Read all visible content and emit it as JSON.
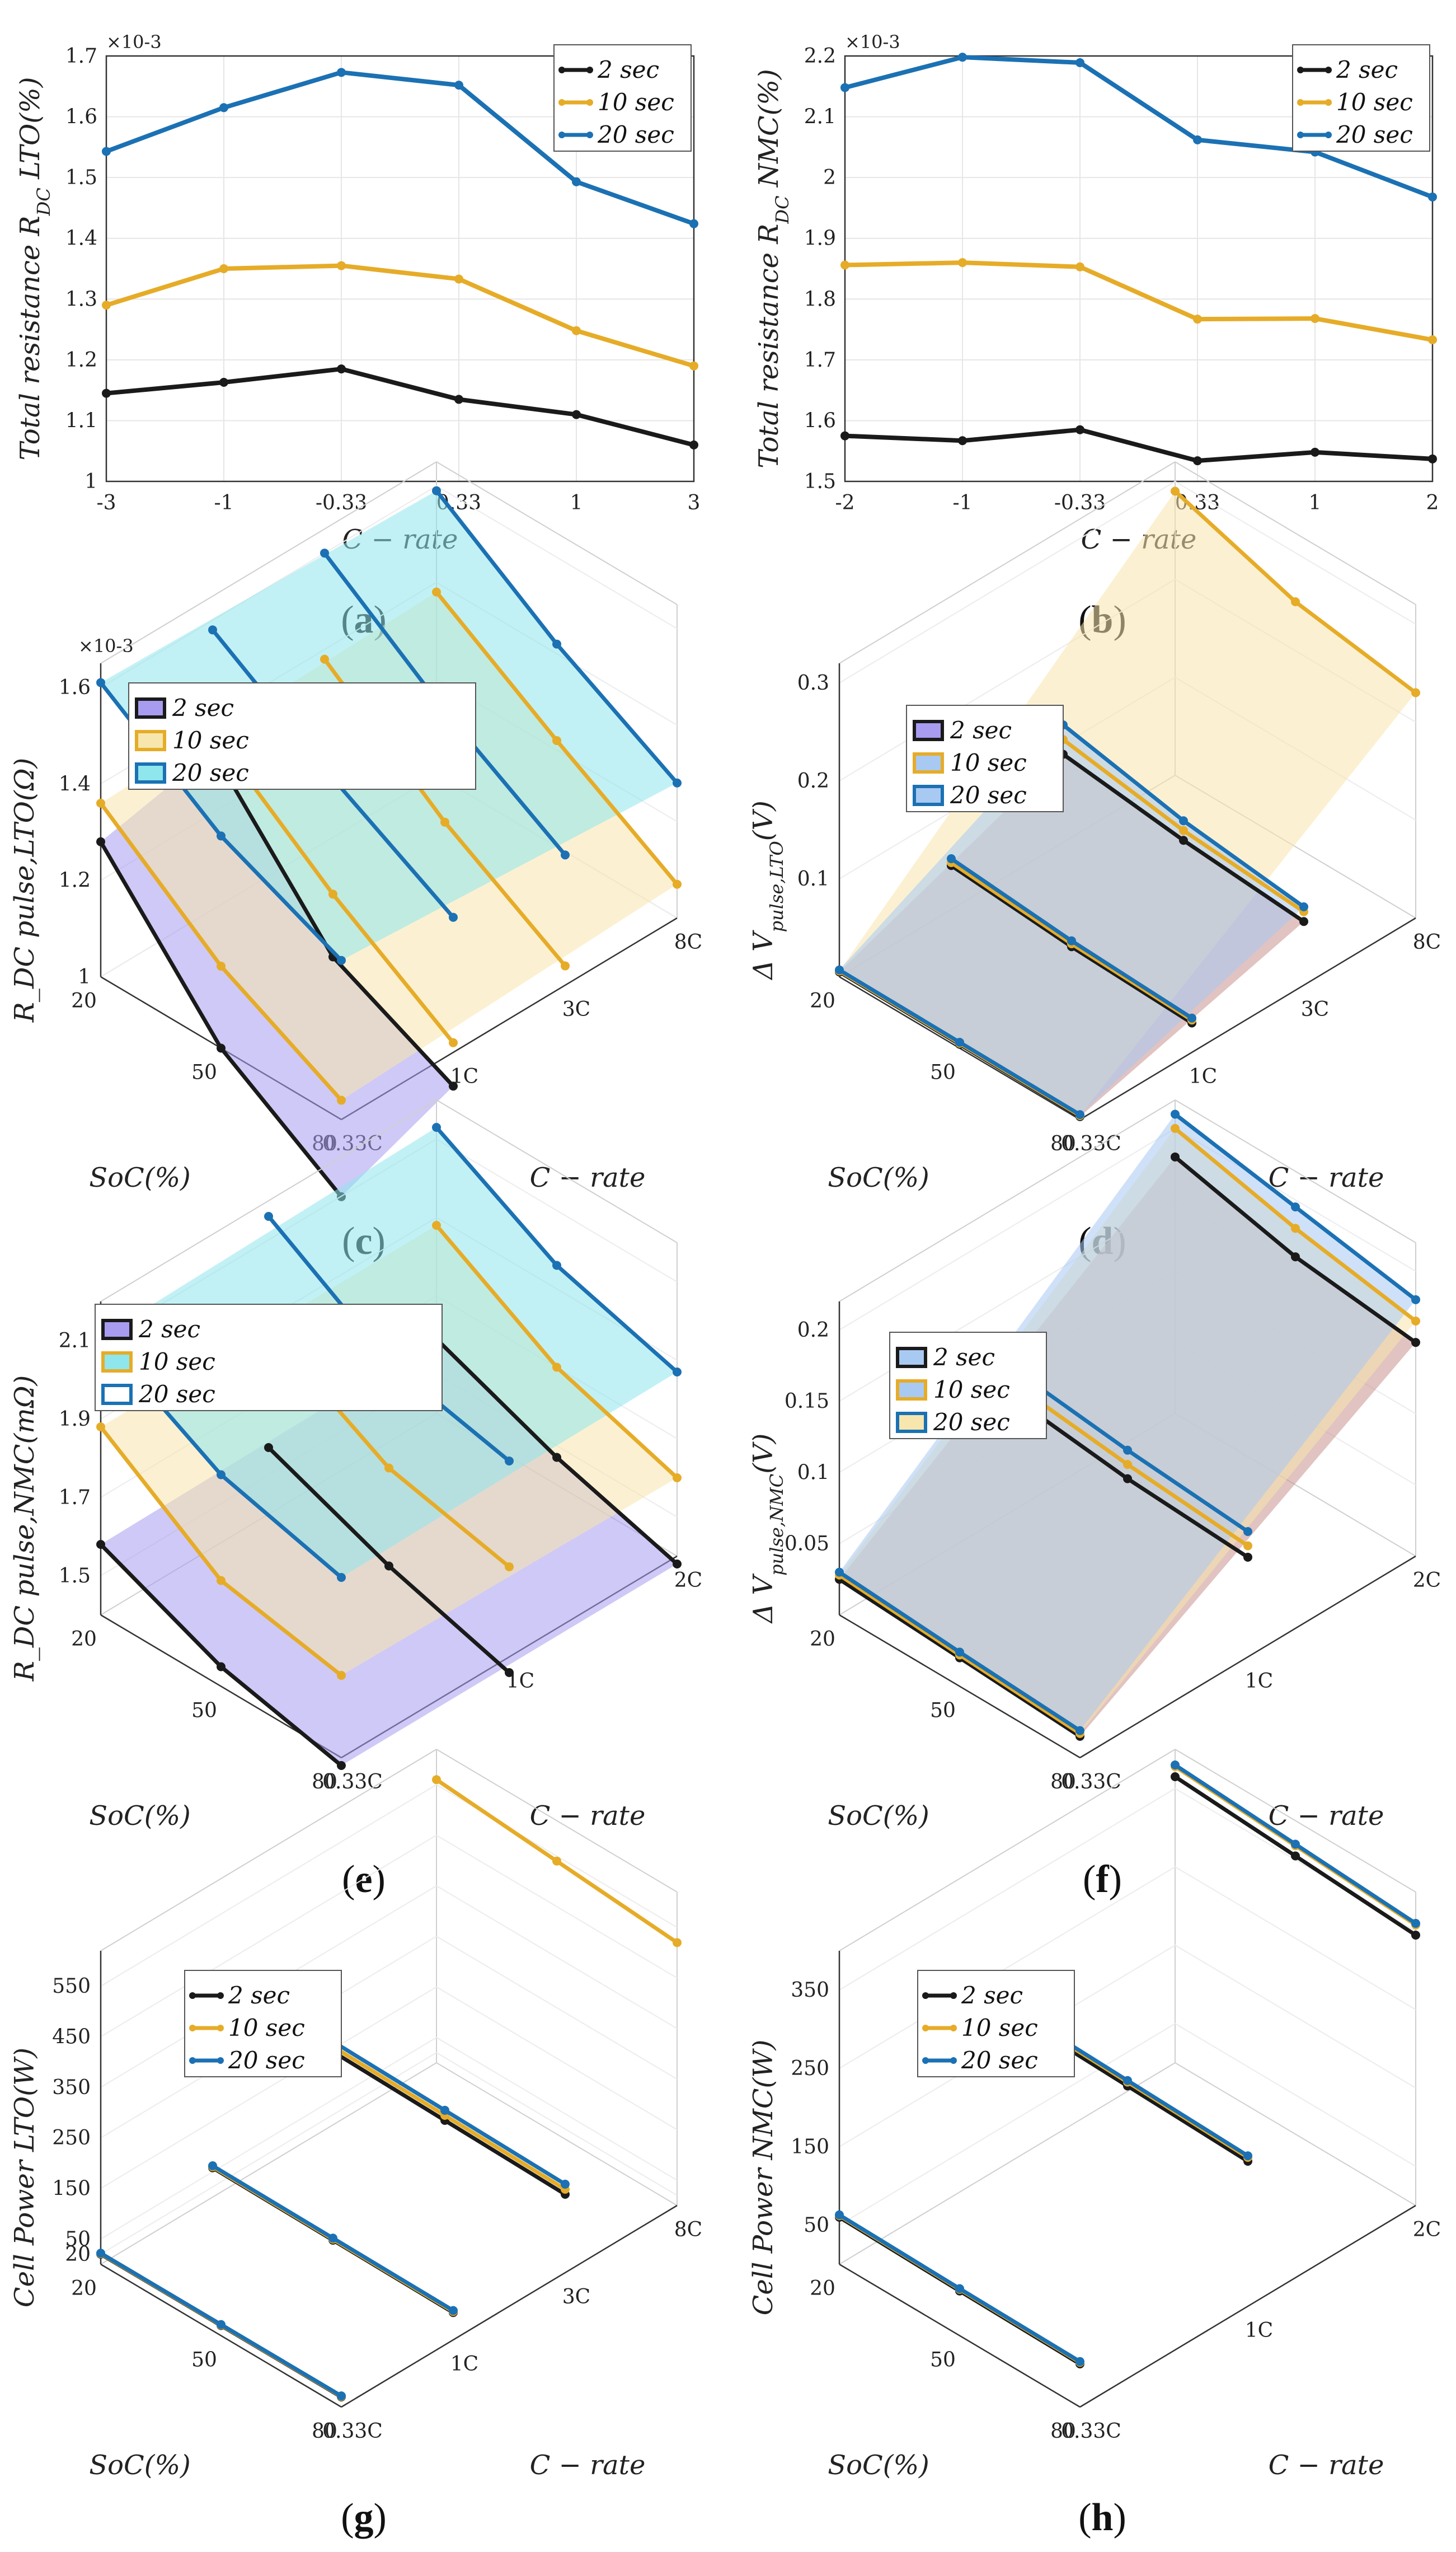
{
  "colors": {
    "s2": "#1a1a1a",
    "s10": "#e6ac28",
    "s20": "#1b71b3",
    "purple": "#a79cf0",
    "cyan": "#8fe6ec",
    "yellow": "#f7e6ad",
    "blue": "#a8c9f2",
    "brown": "#c8928e"
  },
  "charts": [
    {
      "id": "a",
      "caption": "(a)",
      "caption_letter": "a",
      "type": "line",
      "categories": [
        "-3",
        "-1",
        "-0.33",
        "0.33",
        "1",
        "3"
      ],
      "ylim": [
        1.0,
        1.7
      ],
      "yticks": [
        "1",
        "1.1",
        "1.2",
        "1.3",
        "1.4",
        "1.5",
        "1.6",
        "1.7"
      ],
      "multiplier": "×10-3",
      "xlabel": "C − rate",
      "ylabel": "Total resistance R_DC LTO(%)",
      "legend": [
        "2 sec",
        "10 sec",
        "20 sec"
      ],
      "series": [
        {
          "name": "2 sec",
          "values": [
            1.145,
            1.163,
            1.185,
            1.135,
            1.11,
            1.06
          ]
        },
        {
          "name": "10 sec",
          "values": [
            1.29,
            1.35,
            1.355,
            1.333,
            1.248,
            1.19
          ]
        },
        {
          "name": "20 sec",
          "values": [
            1.543,
            1.615,
            1.673,
            1.652,
            1.493,
            1.424
          ]
        }
      ]
    },
    {
      "id": "b",
      "caption": "(b)",
      "caption_letter": "b",
      "type": "line",
      "categories": [
        "-2",
        "-1",
        "-0.33",
        "0.33",
        "1",
        "2"
      ],
      "ylim": [
        1.5,
        2.2
      ],
      "yticks": [
        "1.5",
        "1.6",
        "1.7",
        "1.8",
        "1.9",
        "2",
        "2.1",
        "2.2"
      ],
      "multiplier": "×10-3",
      "xlabel": "C − rate",
      "ylabel": "Total resistance R_DC NMC(%)",
      "legend": [
        "2 sec",
        "10 sec",
        "20 sec"
      ],
      "series": [
        {
          "name": "2 sec",
          "values": [
            1.575,
            1.567,
            1.585,
            1.534,
            1.548,
            1.537
          ]
        },
        {
          "name": "10 sec",
          "values": [
            1.856,
            1.86,
            1.853,
            1.767,
            1.768,
            1.733
          ]
        },
        {
          "name": "20 sec",
          "values": [
            2.148,
            2.198,
            2.189,
            2.062,
            2.042,
            1.968
          ]
        }
      ]
    },
    {
      "id": "c",
      "caption": "(c)",
      "caption_letter": "c",
      "type": "surface3d",
      "zticks": [
        "1",
        "1.2",
        "1.4",
        "1.6"
      ],
      "zlim": [
        1.0,
        1.65
      ],
      "multiplier": "×10-3",
      "soc_ticks": [
        "20",
        "50",
        "80"
      ],
      "crate_ticks": [
        "0.33C",
        "1C",
        "3C",
        "8C"
      ],
      "xlabel": "SoC(%)",
      "ylabel": "C − rate",
      "zlabel": "R_DC pulse,LTO(Ω)",
      "legend": [
        "2 sec",
        "10 sec",
        "20 sec"
      ],
      "lines": [
        {
          "name": "2 sec",
          "c": 0,
          "values": [
            1.28,
            1.0,
            0.84
          ]
        },
        {
          "name": "2 sec",
          "c": 1,
          "values": [
            1.33,
            1.05,
            0.93
          ]
        },
        {
          "name": "10 sec",
          "c": 0,
          "values": [
            1.36,
            1.17,
            1.04
          ]
        },
        {
          "name": "10 sec",
          "c": 1,
          "values": [
            1.37,
            1.18,
            1.02
          ]
        },
        {
          "name": "10 sec",
          "c": 2,
          "values": [
            1.38,
            1.19,
            1.04
          ]
        },
        {
          "name": "10 sec",
          "c": 3,
          "values": [
            1.38,
            1.22,
            1.07
          ]
        },
        {
          "name": "20 sec",
          "c": 0,
          "values": [
            1.61,
            1.44,
            1.33
          ]
        },
        {
          "name": "20 sec",
          "c": 1,
          "values": [
            1.58,
            1.42,
            1.28
          ]
        },
        {
          "name": "20 sec",
          "c": 2,
          "values": [
            1.6,
            1.42,
            1.27
          ]
        },
        {
          "name": "20 sec",
          "c": 3,
          "values": [
            1.59,
            1.42,
            1.28
          ]
        }
      ]
    },
    {
      "id": "d",
      "caption": "(d)",
      "caption_letter": "d",
      "type": "surface3d",
      "zticks": [
        "0.1",
        "0.2",
        "0.3"
      ],
      "zlim": [
        0.0,
        0.32
      ],
      "multiplier": "",
      "soc_ticks": [
        "20",
        "50",
        "80"
      ],
      "crate_ticks": [
        "0.33C",
        "1C",
        "3C",
        "8C"
      ],
      "xlabel": "SoC(%)",
      "ylabel": "C − rate",
      "zlabel": "Δ V_pulse,LTO(V)",
      "legend": [
        "2 sec",
        "10 sec",
        "20 sec"
      ],
      "lines": [
        {
          "name": "2 sec",
          "c": 0,
          "values": [
            0.005,
            0.004,
            0.003
          ]
        },
        {
          "name": "2 sec",
          "c": 1,
          "values": [
            0.045,
            0.035,
            0.03
          ]
        },
        {
          "name": "2 sec",
          "c": 2,
          "values": [
            0.09,
            0.075,
            0.065
          ]
        },
        {
          "name": "10 sec",
          "c": 0,
          "values": [
            0.006,
            0.005,
            0.004
          ]
        },
        {
          "name": "10 sec",
          "c": 1,
          "values": [
            0.048,
            0.038,
            0.033
          ]
        },
        {
          "name": "10 sec",
          "c": 2,
          "values": [
            0.105,
            0.085,
            0.075
          ]
        },
        {
          "name": "10 sec",
          "c": 3,
          "values": [
            0.29,
            0.25,
            0.23
          ]
        },
        {
          "name": "20 sec",
          "c": 0,
          "values": [
            0.007,
            0.006,
            0.005
          ]
        },
        {
          "name": "20 sec",
          "c": 1,
          "values": [
            0.052,
            0.041,
            0.035
          ]
        },
        {
          "name": "20 sec",
          "c": 2,
          "values": [
            0.12,
            0.095,
            0.08
          ]
        }
      ]
    },
    {
      "id": "e",
      "caption": "(e)",
      "caption_letter": "e",
      "type": "surface3d",
      "zticks": [
        "1.5",
        "1.7",
        "1.9",
        "2.1"
      ],
      "zlim": [
        1.4,
        2.2
      ],
      "multiplier": "",
      "soc_ticks": [
        "20",
        "50",
        "80"
      ],
      "crate_ticks": [
        "0.33C",
        "1C",
        "2C"
      ],
      "xlabel": "SoC(%)",
      "ylabel": "C − rate",
      "zlabel": "R_DC pulse,NMC(mΩ)",
      "legend": [
        "2 sec",
        "10 sec",
        "20 sec"
      ],
      "lines": [
        {
          "name": "2 sec",
          "c": 0,
          "values": [
            1.58,
            1.45,
            1.38
          ]
        },
        {
          "name": "2 sec",
          "c": 1,
          "values": [
            1.57,
            1.45,
            1.36
          ]
        },
        {
          "name": "2 sec",
          "c": 2,
          "values": [
            1.59,
            1.47,
            1.38
          ]
        },
        {
          "name": "10 sec",
          "c": 0,
          "values": [
            1.88,
            1.67,
            1.61
          ]
        },
        {
          "name": "10 sec",
          "c": 1,
          "values": [
            1.87,
            1.7,
            1.63
          ]
        },
        {
          "name": "10 sec",
          "c": 2,
          "values": [
            1.88,
            1.7,
            1.6
          ]
        },
        {
          "name": "20 sec",
          "c": 0,
          "values": [
            2.11,
            1.94,
            1.86
          ]
        },
        {
          "name": "20 sec",
          "c": 1,
          "values": [
            2.16,
            1.97,
            1.9
          ]
        },
        {
          "name": "20 sec",
          "c": 2,
          "values": [
            2.13,
            1.96,
            1.87
          ]
        }
      ]
    },
    {
      "id": "f",
      "caption": "(f)",
      "caption_letter": "f",
      "type": "surface3d",
      "zticks": [
        "0.05",
        "0.1",
        "0.15",
        "0.2"
      ],
      "zlim": [
        0.0,
        0.22
      ],
      "multiplier": "",
      "soc_ticks": [
        "20",
        "50",
        "80"
      ],
      "crate_ticks": [
        "0.33C",
        "1C",
        "2C"
      ],
      "xlabel": "SoC(%)",
      "ylabel": "C − rate",
      "zlabel": "Δ V_pulse,NMC(V)",
      "legend": [
        "2 sec",
        "10 sec",
        "20 sec"
      ],
      "lines": [
        {
          "name": "2 sec",
          "c": 0,
          "values": [
            0.025,
            0.02,
            0.015
          ]
        },
        {
          "name": "2 sec",
          "c": 1,
          "values": [
            0.085,
            0.075,
            0.07
          ]
        },
        {
          "name": "2 sec",
          "c": 2,
          "values": [
            0.18,
            0.16,
            0.15
          ]
        },
        {
          "name": "10 sec",
          "c": 0,
          "values": [
            0.028,
            0.022,
            0.017
          ]
        },
        {
          "name": "10 sec",
          "c": 1,
          "values": [
            0.095,
            0.085,
            0.078
          ]
        },
        {
          "name": "10 sec",
          "c": 2,
          "values": [
            0.2,
            0.18,
            0.165
          ]
        },
        {
          "name": "20 sec",
          "c": 0,
          "values": [
            0.03,
            0.024,
            0.019
          ]
        },
        {
          "name": "20 sec",
          "c": 1,
          "values": [
            0.105,
            0.095,
            0.088
          ]
        },
        {
          "name": "20 sec",
          "c": 2,
          "values": [
            0.21,
            0.195,
            0.18
          ]
        }
      ]
    },
    {
      "id": "g",
      "caption": "(g)",
      "caption_letter": "g",
      "type": "lines3d",
      "zticks": [
        "20",
        "50",
        "150",
        "250",
        "350",
        "450",
        "550"
      ],
      "zlim": [
        0,
        620
      ],
      "multiplier": "",
      "soc_ticks": [
        "20",
        "50",
        "80"
      ],
      "crate_ticks": [
        "0.33C",
        "1C",
        "3C",
        "8C"
      ],
      "xlabel": "SoC(%)",
      "ylabel": "C − rate",
      "zlabel": "Cell Power LTO(W)",
      "legend": [
        "2 sec",
        "10 sec",
        "20 sec"
      ],
      "lines": [
        {
          "name": "2 sec",
          "c": 0,
          "values": [
            20,
            20,
            20
          ]
        },
        {
          "name": "2 sec",
          "c": 1,
          "values": [
            58,
            56,
            54
          ]
        },
        {
          "name": "2 sec",
          "c": 2,
          "values": [
            165,
            160,
            155
          ]
        },
        {
          "name": "10 sec",
          "c": 0,
          "values": [
            21,
            21,
            21
          ]
        },
        {
          "name": "10 sec",
          "c": 1,
          "values": [
            60,
            58,
            56
          ]
        },
        {
          "name": "10 sec",
          "c": 2,
          "values": [
            175,
            170,
            165
          ]
        },
        {
          "name": "10 sec",
          "c": 3,
          "values": [
            560,
            540,
            520
          ]
        },
        {
          "name": "20 sec",
          "c": 0,
          "values": [
            22,
            22,
            22
          ]
        },
        {
          "name": "20 sec",
          "c": 1,
          "values": [
            62,
            60,
            58
          ]
        },
        {
          "name": "20 sec",
          "c": 2,
          "values": [
            185,
            180,
            175
          ]
        }
      ]
    },
    {
      "id": "h",
      "caption": "(h)",
      "caption_letter": "h",
      "type": "lines3d",
      "zticks": [
        "50",
        "150",
        "250",
        "350"
      ],
      "zlim": [
        0,
        400
      ],
      "multiplier": "",
      "soc_ticks": [
        "20",
        "50",
        "80"
      ],
      "crate_ticks": [
        "0.33C",
        "1C",
        "2C"
      ],
      "xlabel": "SoC(%)",
      "ylabel": "C − rate",
      "zlabel": "Cell Power NMC(W)",
      "legend": [
        "2 sec",
        "10 sec",
        "20 sec"
      ],
      "lines": [
        {
          "name": "2 sec",
          "c": 0,
          "values": [
            60,
            57,
            55
          ]
        },
        {
          "name": "2 sec",
          "c": 1,
          "values": [
            195,
            190,
            185
          ]
        },
        {
          "name": "2 sec",
          "c": 2,
          "values": [
            365,
            355,
            345
          ]
        },
        {
          "name": "10 sec",
          "c": 0,
          "values": [
            62,
            59,
            57
          ]
        },
        {
          "name": "10 sec",
          "c": 1,
          "values": [
            200,
            195,
            190
          ]
        },
        {
          "name": "10 sec",
          "c": 2,
          "values": [
            378,
            368,
            358
          ]
        },
        {
          "name": "20 sec",
          "c": 0,
          "values": [
            63,
            60,
            58
          ]
        },
        {
          "name": "20 sec",
          "c": 1,
          "values": [
            202,
            197,
            192
          ]
        },
        {
          "name": "20 sec",
          "c": 2,
          "values": [
            380,
            370,
            360
          ]
        }
      ]
    }
  ]
}
